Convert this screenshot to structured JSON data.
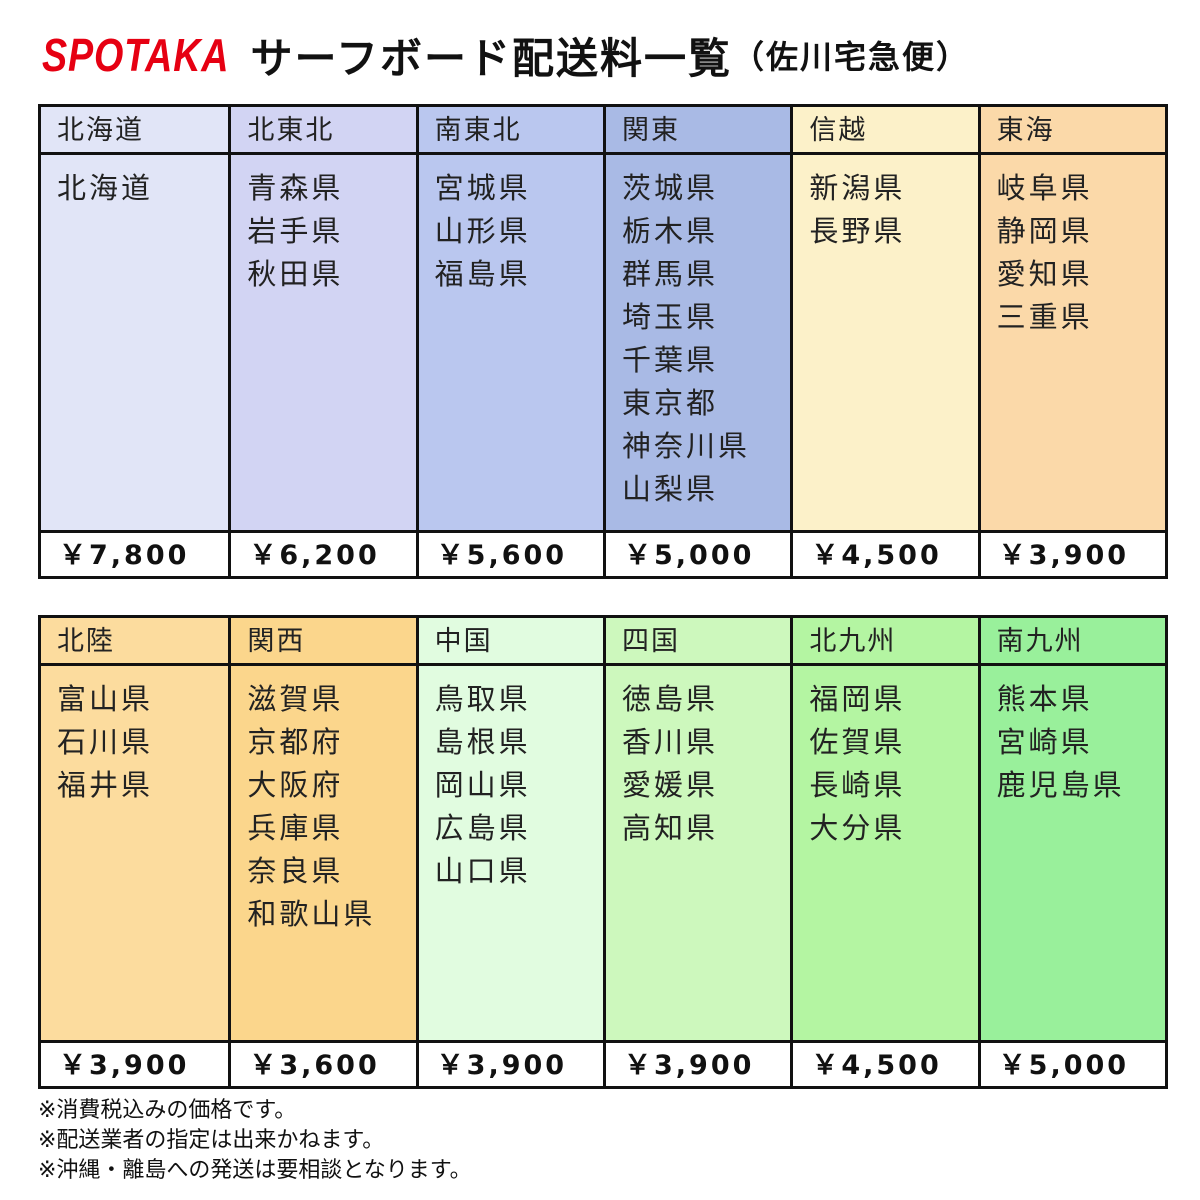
{
  "header": {
    "brand": "SPOTAKA",
    "title": "サーフボード配送料一覧",
    "subtitle": "（佐川宅急便）"
  },
  "tables": [
    {
      "regions": [
        {
          "name": "北海道",
          "color": "#e1e5f7",
          "prefectures": [
            "北海道"
          ],
          "price": "￥7,800"
        },
        {
          "name": "北東北",
          "color": "#d2d4f3",
          "prefectures": [
            "青森県",
            "岩手県",
            "秋田県"
          ],
          "price": "￥6,200"
        },
        {
          "name": "南東北",
          "color": "#bac7ef",
          "prefectures": [
            "宮城県",
            "山形県",
            "福島県"
          ],
          "price": "￥5,600"
        },
        {
          "name": "関東",
          "color": "#a9bae5",
          "prefectures": [
            "茨城県",
            "栃木県",
            "群馬県",
            "埼玉県",
            "千葉県",
            "東京都",
            "神奈川県",
            "山梨県"
          ],
          "price": "￥5,000"
        },
        {
          "name": "信越",
          "color": "#fcf1c9",
          "prefectures": [
            "新潟県",
            "長野県"
          ],
          "price": "￥4,500"
        },
        {
          "name": "東海",
          "color": "#fbd9a9",
          "prefectures": [
            "岐阜県",
            "静岡県",
            "愛知県",
            "三重県"
          ],
          "price": "￥3,900"
        }
      ]
    },
    {
      "regions": [
        {
          "name": "北陸",
          "color": "#fcdc9e",
          "prefectures": [
            "富山県",
            "石川県",
            "福井県"
          ],
          "price": "￥3,900"
        },
        {
          "name": "関西",
          "color": "#fbd68c",
          "prefectures": [
            "滋賀県",
            "京都府",
            "大阪府",
            "兵庫県",
            "奈良県",
            "和歌山県"
          ],
          "price": "￥3,600"
        },
        {
          "name": "中国",
          "color": "#e1fce0",
          "prefectures": [
            "鳥取県",
            "島根県",
            "岡山県",
            "広島県",
            "山口県"
          ],
          "price": "￥3,900"
        },
        {
          "name": "四国",
          "color": "#cdf8bd",
          "prefectures": [
            "徳島県",
            "香川県",
            "愛媛県",
            "高知県"
          ],
          "price": "￥3,900"
        },
        {
          "name": "北九州",
          "color": "#b4f5a2",
          "prefectures": [
            "福岡県",
            "佐賀県",
            "長崎県",
            "大分県"
          ],
          "price": "￥4,500"
        },
        {
          "name": "南九州",
          "color": "#99f09b",
          "prefectures": [
            "熊本県",
            "宮崎県",
            "鹿児島県"
          ],
          "price": "￥5,000"
        }
      ]
    }
  ],
  "notes": [
    "※消費税込みの価格です。",
    "※配送業者の指定は出来かねます。",
    "※沖縄・離島への発送は要相談となります。"
  ]
}
